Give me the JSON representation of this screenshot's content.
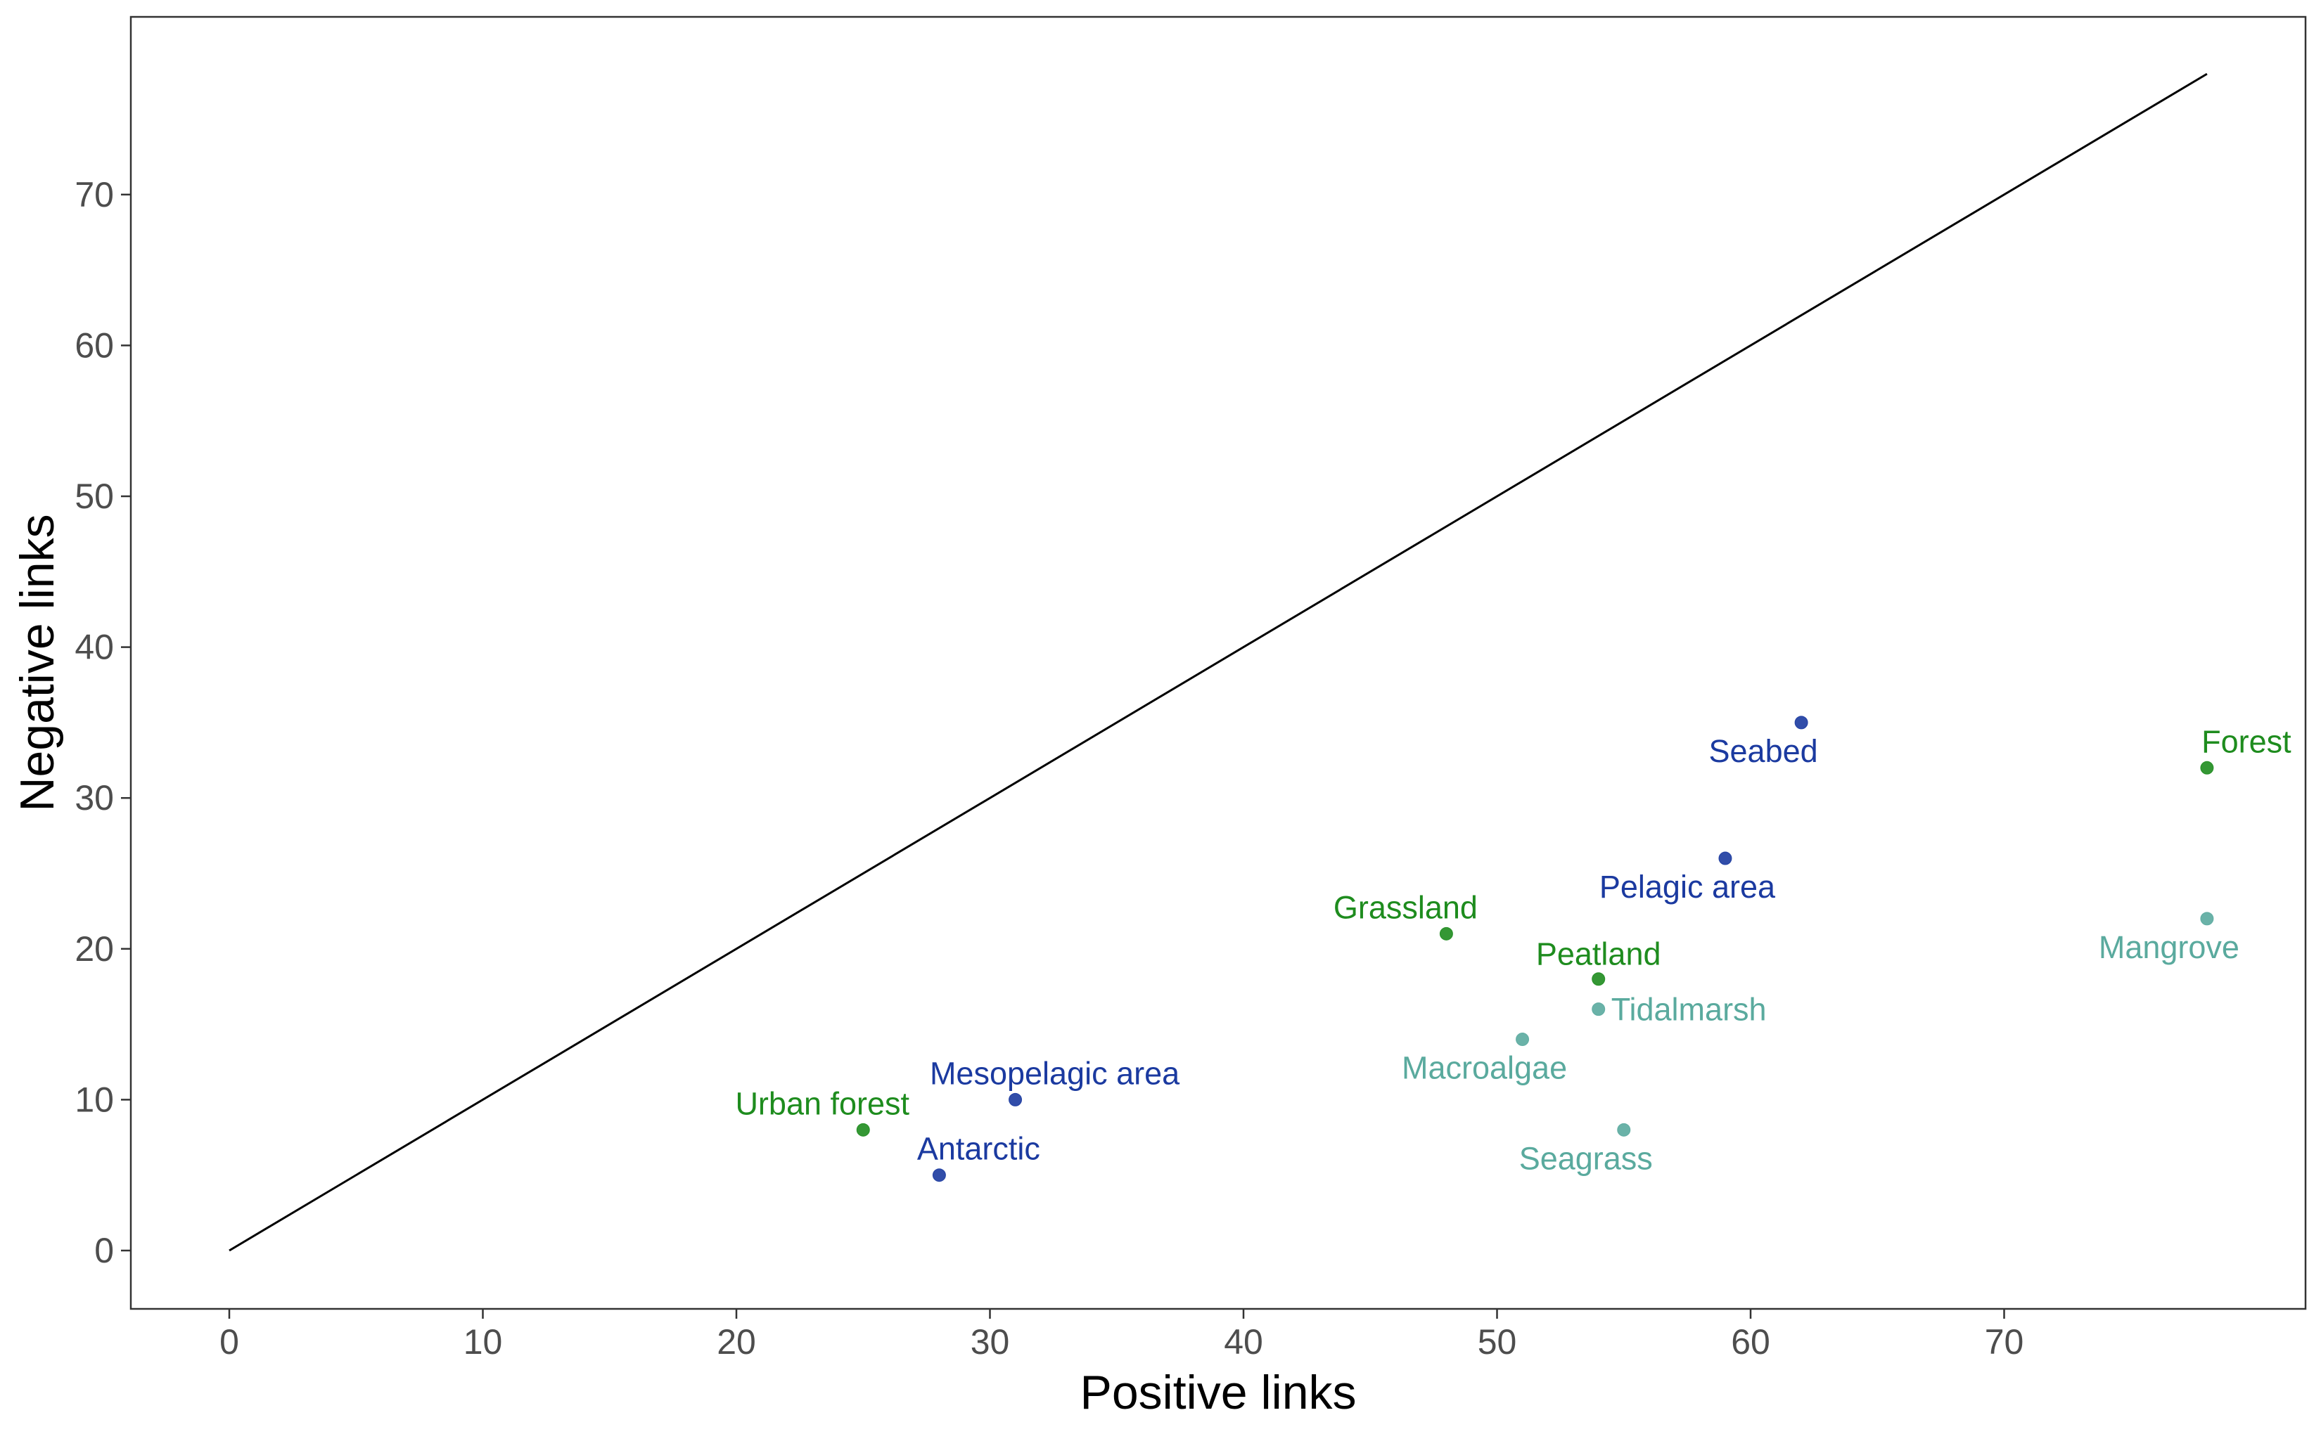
{
  "chart_data": {
    "type": "scatter",
    "xlabel": "Positive links",
    "ylabel": "Negative links",
    "xlim": [
      -4,
      82
    ],
    "ylim": [
      -4,
      82
    ],
    "x_ticks": [
      0,
      10,
      20,
      30,
      40,
      50,
      60,
      70
    ],
    "y_ticks": [
      0,
      10,
      20,
      30,
      40,
      50,
      60,
      70
    ],
    "grid": false,
    "reference_line": {
      "from": [
        0,
        0
      ],
      "to": [
        78,
        78
      ],
      "color": "#000000"
    },
    "colors": {
      "terrestrial": "#1e8c1e",
      "coastal": "#5aaa9e",
      "marine": "#1b3aa0"
    },
    "points": [
      {
        "label": "Forest",
        "x": 78,
        "y": 32,
        "group": "terrestrial",
        "label_pos": "above-right"
      },
      {
        "label": "Seabed",
        "x": 62,
        "y": 35,
        "group": "marine",
        "label_pos": "below-left"
      },
      {
        "label": "Pelagic area",
        "x": 59,
        "y": 26,
        "group": "marine",
        "label_pos": "below-left"
      },
      {
        "label": "Mangrove",
        "x": 78,
        "y": 22,
        "group": "coastal",
        "label_pos": "below-left"
      },
      {
        "label": "Grassland",
        "x": 48,
        "y": 21,
        "group": "terrestrial",
        "label_pos": "above-left"
      },
      {
        "label": "Peatland",
        "x": 54,
        "y": 18,
        "group": "terrestrial",
        "label_pos": "above"
      },
      {
        "label": "Tidalmarsh",
        "x": 54,
        "y": 16,
        "group": "coastal",
        "label_pos": "right"
      },
      {
        "label": "Macroalgae",
        "x": 51,
        "y": 14,
        "group": "coastal",
        "label_pos": "below-left"
      },
      {
        "label": "Seagrass",
        "x": 55,
        "y": 8,
        "group": "coastal",
        "label_pos": "below-left"
      },
      {
        "label": "Mesopelagic area",
        "x": 31,
        "y": 10,
        "group": "marine",
        "label_pos": "above-right"
      },
      {
        "label": "Urban forest",
        "x": 25,
        "y": 8,
        "group": "terrestrial",
        "label_pos": "above-left"
      },
      {
        "label": "Antarctic",
        "x": 28,
        "y": 5,
        "group": "marine",
        "label_pos": "above-right"
      }
    ]
  }
}
